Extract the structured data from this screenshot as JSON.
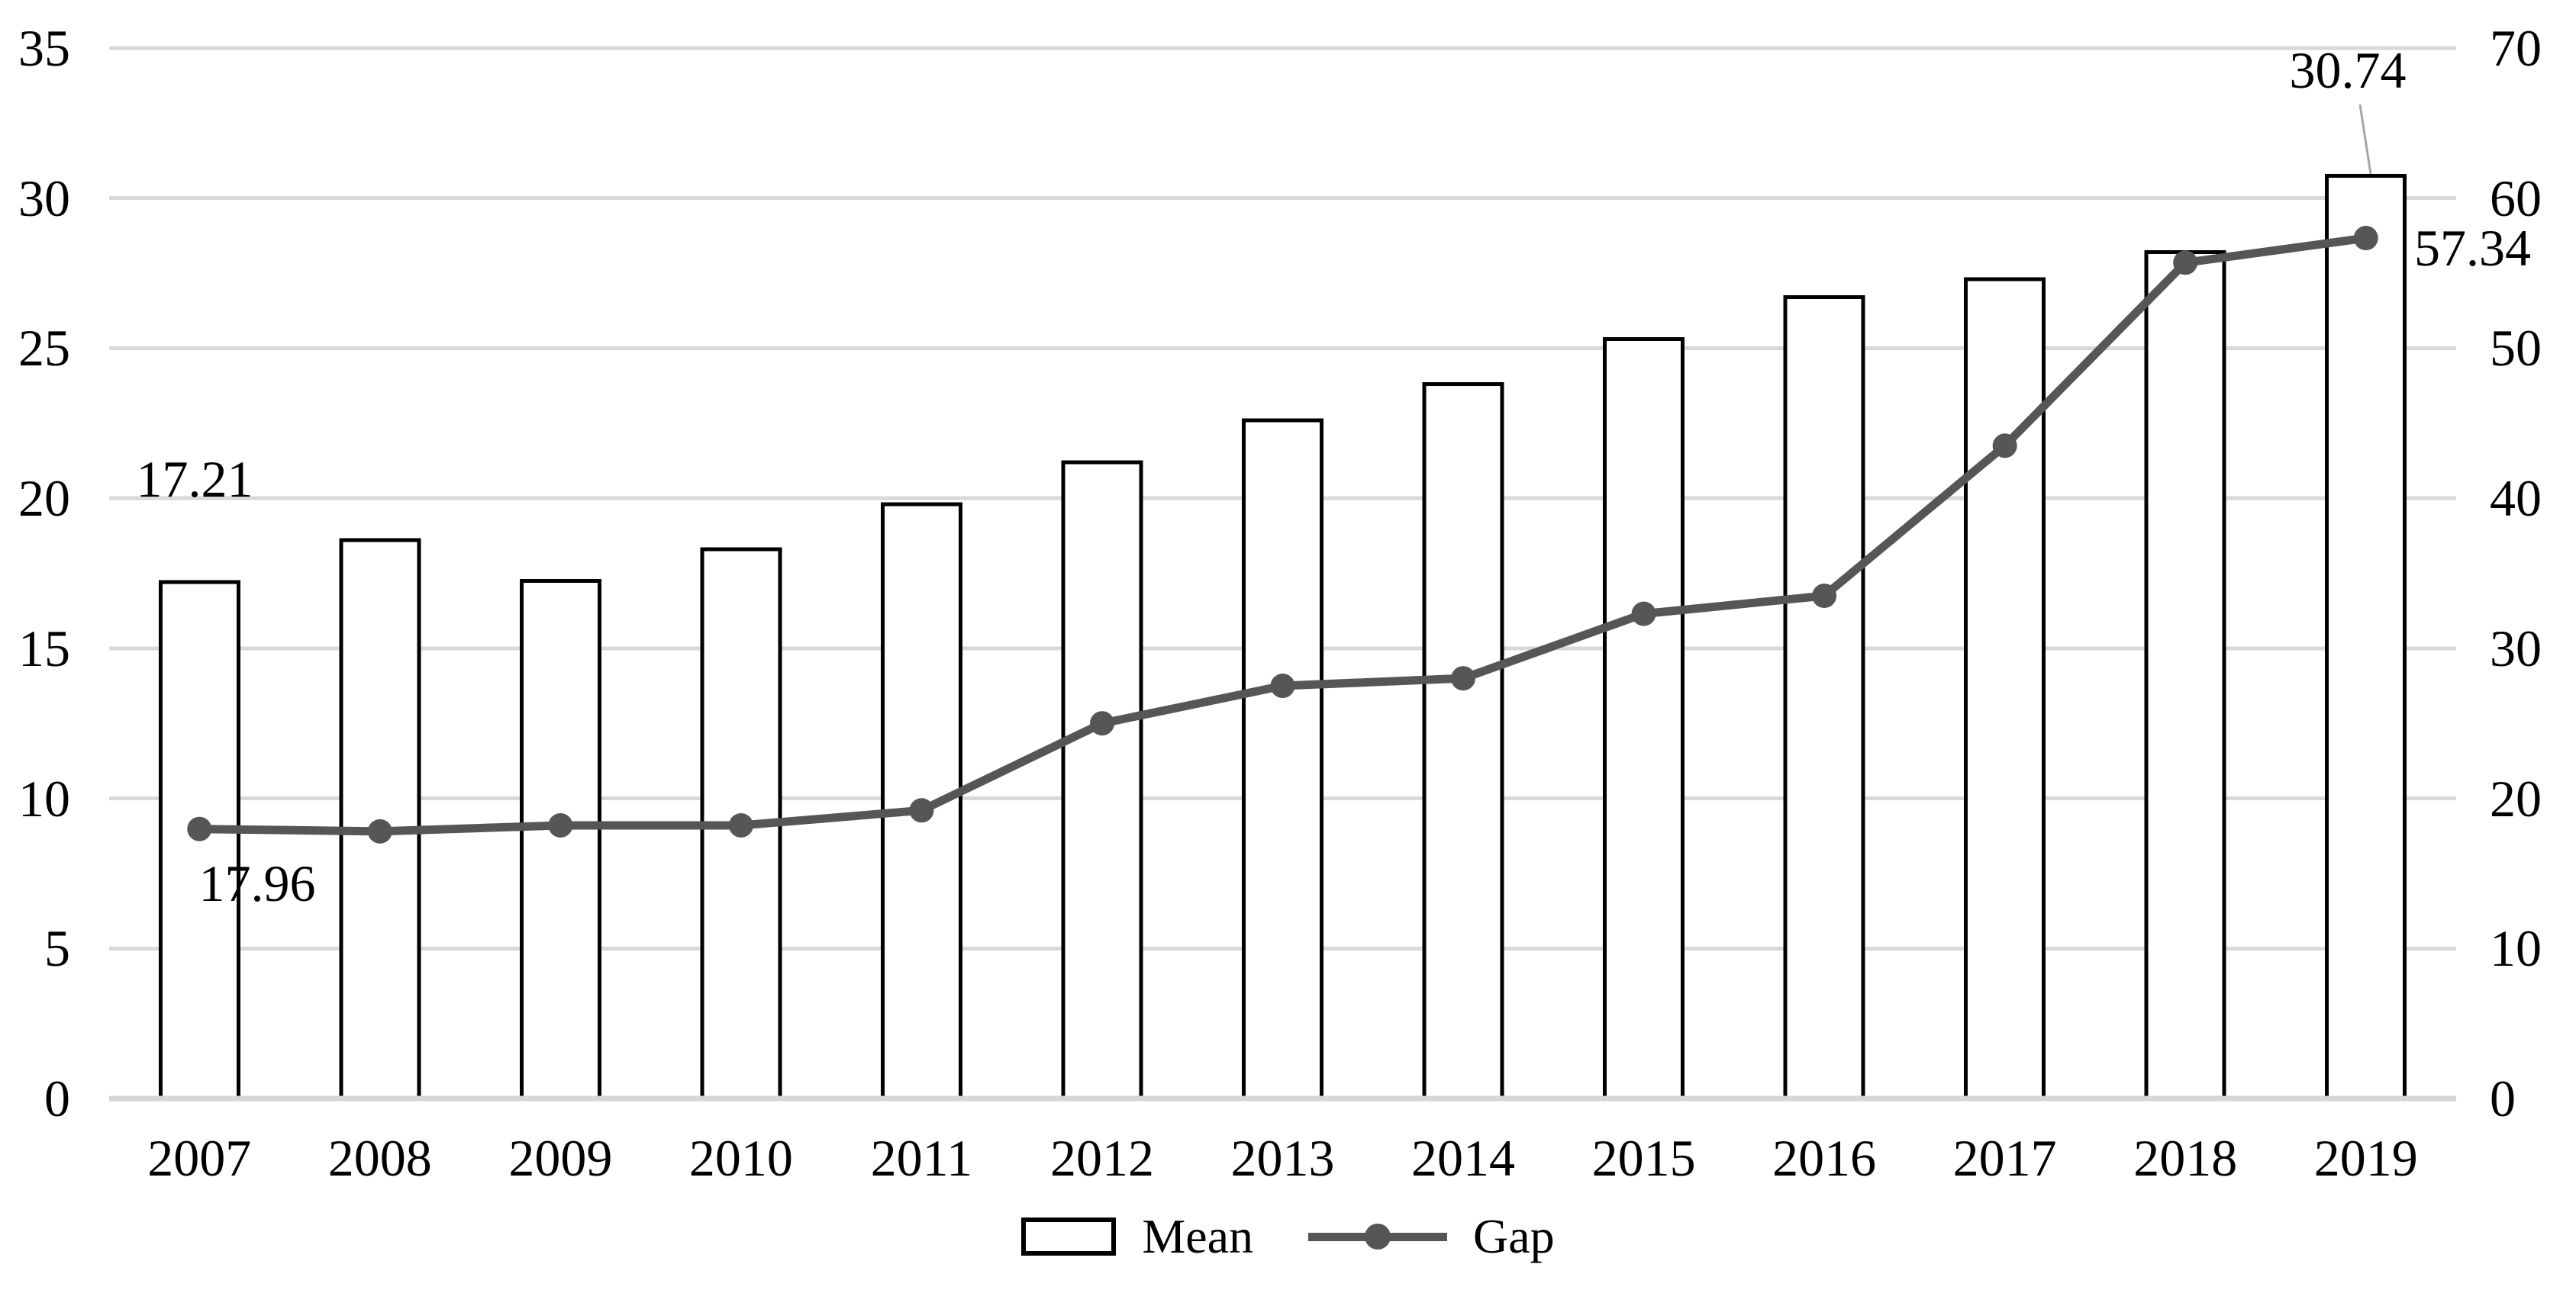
{
  "chart_data": {
    "type": "bar-line-combo",
    "categories": [
      "2007",
      "2008",
      "2009",
      "2010",
      "2011",
      "2012",
      "2013",
      "2014",
      "2015",
      "2016",
      "2017",
      "2018",
      "2019"
    ],
    "series": [
      {
        "name": "Mean",
        "type": "bar",
        "axis": "left",
        "values": [
          17.21,
          18.6,
          17.25,
          18.3,
          19.8,
          21.2,
          22.6,
          23.8,
          25.3,
          26.7,
          27.3,
          28.2,
          30.74
        ]
      },
      {
        "name": "Gap",
        "type": "line",
        "axis": "right",
        "values": [
          17.96,
          17.8,
          18.2,
          18.2,
          19.2,
          25.0,
          27.5,
          28.0,
          32.3,
          33.5,
          43.5,
          55.7,
          57.34
        ]
      }
    ],
    "title": "",
    "xlabel": "",
    "ylabel_left": "",
    "ylabel_right": "",
    "left_axis": {
      "range": [
        0,
        35
      ],
      "ticks": [
        0,
        5,
        10,
        15,
        20,
        25,
        30,
        35
      ]
    },
    "right_axis": {
      "range": [
        0,
        70
      ],
      "ticks": [
        0,
        10,
        20,
        30,
        40,
        50,
        60,
        70
      ]
    },
    "grid": true,
    "legend_position": "bottom",
    "legend": [
      "Mean",
      "Gap"
    ],
    "annotations": [
      {
        "text": "17.21",
        "series": "Mean",
        "category": "2007"
      },
      {
        "text": "17.96",
        "series": "Gap",
        "category": "2007"
      },
      {
        "text": "30.74",
        "series": "Mean",
        "category": "2019"
      },
      {
        "text": "57.34",
        "series": "Gap",
        "category": "2019"
      }
    ]
  },
  "annotations": {
    "mean_2007": "17.21",
    "gap_2007": "17.96",
    "mean_2019": "30.74",
    "gap_2019": "57.34"
  },
  "legend": {
    "mean_label": "Mean",
    "gap_label": "Gap"
  },
  "colors": {
    "line": "#565656",
    "grid": "#d9d9d9",
    "baseline": "#d6d6d6",
    "bar_fill": "#ffffff",
    "bar_border": "#000000",
    "leader": "#a6a6a6",
    "text": "#000000"
  }
}
